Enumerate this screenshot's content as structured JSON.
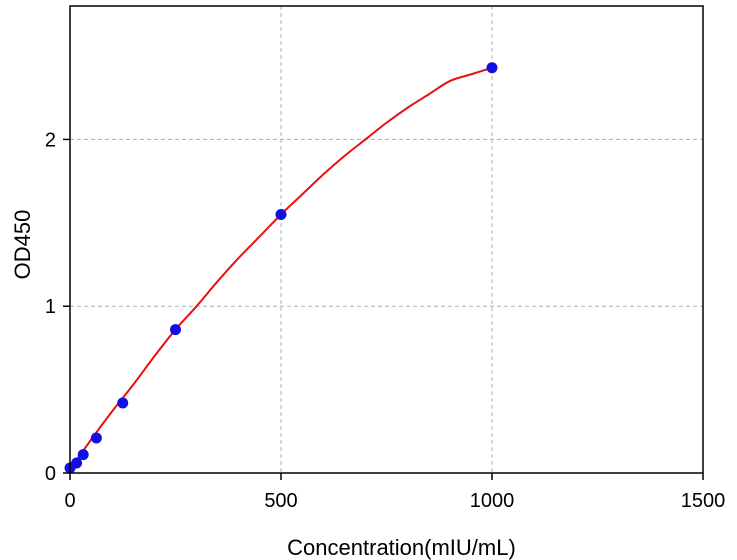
{
  "chart_data": {
    "type": "scatter",
    "title": "",
    "xlabel": "Concentration(mIU/mL)",
    "ylabel": "OD450",
    "xlim": [
      0,
      1500
    ],
    "ylim": [
      0,
      2.8
    ],
    "xticks": [
      0,
      500,
      1000,
      1500
    ],
    "yticks": [
      0,
      1,
      2
    ],
    "grid": true,
    "legend": "none",
    "colors": {
      "points": "#1010e0",
      "curve": "#e81010",
      "grid": "#b0b0b0",
      "axes": "#000000"
    },
    "points": {
      "x": [
        0,
        15.6,
        31.25,
        62.5,
        125,
        250,
        500,
        1000
      ],
      "y": [
        0.03,
        0.06,
        0.11,
        0.21,
        0.42,
        0.86,
        1.55,
        2.43
      ]
    },
    "fit_curve": {
      "x": [
        0,
        50,
        100,
        150,
        200,
        250,
        300,
        350,
        400,
        450,
        500,
        550,
        600,
        650,
        700,
        750,
        800,
        850,
        900,
        950,
        1000
      ],
      "y": [
        0.02,
        0.2,
        0.37,
        0.53,
        0.7,
        0.86,
        1.0,
        1.15,
        1.29,
        1.42,
        1.55,
        1.67,
        1.79,
        1.9,
        2.0,
        2.1,
        2.19,
        2.27,
        2.35,
        2.39,
        2.43
      ]
    }
  }
}
